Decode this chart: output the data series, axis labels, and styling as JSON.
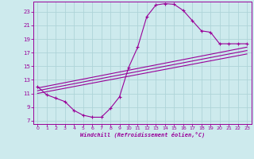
{
  "xlabel": "Windchill (Refroidissement éolien,°C)",
  "bg_color": "#cdeaed",
  "grid_color": "#aed4d8",
  "line_color": "#990099",
  "xlim": [
    -0.5,
    23.5
  ],
  "ylim": [
    6.5,
    24.5
  ],
  "yticks": [
    7,
    9,
    11,
    13,
    15,
    17,
    19,
    21,
    23
  ],
  "xticks": [
    0,
    1,
    2,
    3,
    4,
    5,
    6,
    7,
    8,
    9,
    10,
    11,
    12,
    13,
    14,
    15,
    16,
    17,
    18,
    19,
    20,
    21,
    22,
    23
  ],
  "curve_x": [
    0,
    1,
    2,
    3,
    4,
    5,
    6,
    7,
    8,
    9,
    10,
    11,
    12,
    13,
    14,
    15,
    16,
    17,
    18,
    19,
    20,
    21,
    22,
    23
  ],
  "curve_y": [
    12.0,
    10.8,
    10.3,
    9.8,
    8.5,
    7.8,
    7.5,
    7.5,
    8.8,
    10.5,
    14.8,
    17.8,
    22.3,
    24.0,
    24.2,
    24.1,
    23.2,
    21.7,
    20.2,
    20.0,
    18.3,
    18.3,
    18.3,
    18.3
  ],
  "line1_x": [
    0,
    23
  ],
  "line1_y": [
    11.8,
    17.8
  ],
  "line2_x": [
    0,
    23
  ],
  "line2_y": [
    11.4,
    17.3
  ],
  "line3_x": [
    0,
    23
  ],
  "line3_y": [
    11.0,
    16.8
  ]
}
